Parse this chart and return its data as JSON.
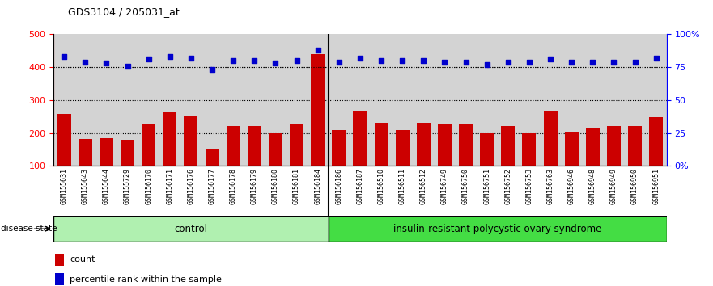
{
  "title": "GDS3104 / 205031_at",
  "samples": [
    "GSM155631",
    "GSM155643",
    "GSM155644",
    "GSM155729",
    "GSM156170",
    "GSM156171",
    "GSM156176",
    "GSM156177",
    "GSM156178",
    "GSM156179",
    "GSM156180",
    "GSM156181",
    "GSM156184",
    "GSM156186",
    "GSM156187",
    "GSM156510",
    "GSM156511",
    "GSM156512",
    "GSM156749",
    "GSM156750",
    "GSM156751",
    "GSM156752",
    "GSM156753",
    "GSM156763",
    "GSM156946",
    "GSM156948",
    "GSM156949",
    "GSM156950",
    "GSM156951"
  ],
  "counts": [
    258,
    183,
    185,
    180,
    225,
    262,
    252,
    152,
    222,
    220,
    200,
    228,
    440,
    210,
    265,
    230,
    210,
    230,
    228,
    228,
    200,
    222,
    200,
    268,
    205,
    215,
    222,
    220,
    248
  ],
  "percentiles": [
    83,
    79,
    78,
    76,
    81,
    83,
    82,
    73,
    80,
    80,
    78,
    80,
    88,
    79,
    82,
    80,
    80,
    80,
    79,
    79,
    77,
    79,
    79,
    81,
    79,
    79,
    79,
    79,
    82
  ],
  "n_control": 13,
  "n_disease": 16,
  "group1_label": "control",
  "group2_label": "insulin-resistant polycystic ovary syndrome",
  "ylim_left": [
    100,
    500
  ],
  "ylim_right": [
    0,
    100
  ],
  "yticks_left": [
    100,
    200,
    300,
    400,
    500
  ],
  "yticks_right": [
    0,
    25,
    50,
    75,
    100
  ],
  "yticklabels_right": [
    "0%",
    "25",
    "50",
    "75",
    "100%"
  ],
  "bar_color": "#cc0000",
  "dot_color": "#0000cc",
  "bg_color": "#d3d3d3",
  "tick_bg_color": "#c0c0c0",
  "group1_color": "#b0f0b0",
  "group2_color": "#44dd44",
  "disease_state_label": "disease state",
  "legend_count": "count",
  "legend_pct": "percentile rank within the sample",
  "legend_count_color": "#cc0000",
  "legend_pct_color": "#0000cc"
}
